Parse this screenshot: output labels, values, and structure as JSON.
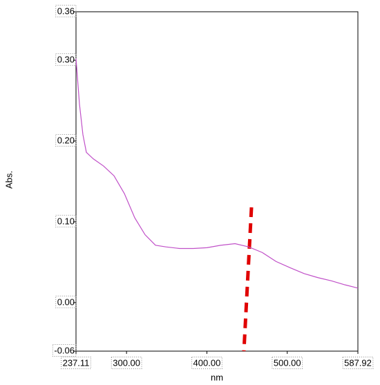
{
  "chart_data": {
    "type": "line",
    "xlabel": "nm",
    "ylabel": "Abs.",
    "x": [
      237.11,
      241.4,
      245.7,
      250.0,
      258.6,
      271.5,
      284.4,
      297.3,
      310.2,
      323.1,
      336.0,
      349.0,
      366.0,
      383.0,
      400.0,
      417.0,
      435.0,
      452.0,
      469.0,
      486.0,
      504.0,
      521.0,
      538.0,
      555.0,
      572.0,
      587.92
    ],
    "series": [
      {
        "color": "#c050c8",
        "values": [
          0.302,
          0.246,
          0.208,
          0.186,
          0.178,
          0.169,
          0.157,
          0.135,
          0.105,
          0.084,
          0.071,
          0.069,
          0.067,
          0.067,
          0.068,
          0.071,
          0.073,
          0.069,
          0.062,
          0.051,
          0.043,
          0.036,
          0.031,
          0.027,
          0.022,
          0.018
        ]
      }
    ],
    "xlim": [
      237.11,
      587.92
    ],
    "xticks": [
      237.11,
      {
        "value": 300,
        "label": "300.00"
      },
      {
        "value": 400,
        "label": "400.00"
      },
      {
        "value": 500,
        "label": "500.00"
      },
      587.92
    ],
    "ylim": [
      -0.06,
      0.36
    ],
    "yticks": [
      -0.06,
      {
        "value": 0,
        "label": "0.00"
      },
      {
        "value": 0.1,
        "label": "0.10"
      },
      {
        "value": 0.2,
        "label": "0.20"
      },
      {
        "value": 0.3,
        "label": "0.30"
      },
      0.36
    ]
  }
}
